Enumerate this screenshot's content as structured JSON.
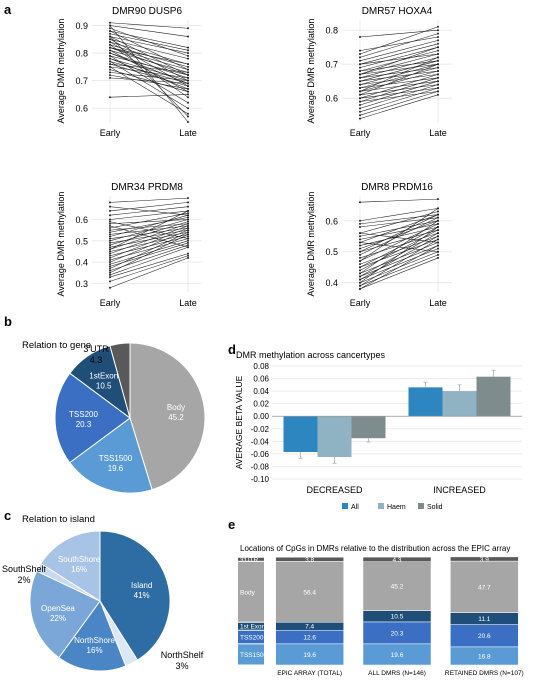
{
  "panel_labels": {
    "a": "a",
    "b": "b",
    "c": "c",
    "d": "d",
    "e": "e"
  },
  "colors": {
    "line": "#222222",
    "grid": "#e6e6e6",
    "body": "#a6a6a6",
    "tss1500": "#5b9bd5",
    "tss200": "#3a6fc4",
    "exon": "#1f4e79",
    "utr": "#595959",
    "island": "#2e6da4",
    "northshore": "#4a86c5",
    "opensea": "#7aa7d8",
    "southshore": "#a7c3e6",
    "southshelf": "#c9d9ef",
    "northshelf": "#dce7f5",
    "all": "#2e86c1",
    "haem": "#8fb3c3",
    "solid": "#7f8c8d"
  },
  "chart_data": [
    {
      "type": "line",
      "panel": "a",
      "title": "DMR90 DUSP6",
      "xlabel": "",
      "ylabel": "Average DMR methylation",
      "categories": [
        "Early",
        "Late"
      ],
      "ylim": [
        0.55,
        0.92
      ],
      "yticks": [
        0.6,
        0.7,
        0.8,
        0.9
      ],
      "ytick_labels": [
        "0.6",
        "0.7",
        "0.8",
        "0.9"
      ],
      "pairs": [
        [
          0.91,
          0.89
        ],
        [
          0.9,
          0.86
        ],
        [
          0.89,
          0.79
        ],
        [
          0.88,
          0.82
        ],
        [
          0.88,
          0.74
        ],
        [
          0.87,
          0.81
        ],
        [
          0.86,
          0.8
        ],
        [
          0.86,
          0.72
        ],
        [
          0.85,
          0.78
        ],
        [
          0.85,
          0.7
        ],
        [
          0.84,
          0.76
        ],
        [
          0.84,
          0.68
        ],
        [
          0.83,
          0.75
        ],
        [
          0.83,
          0.64
        ],
        [
          0.82,
          0.74
        ],
        [
          0.82,
          0.72
        ],
        [
          0.81,
          0.73
        ],
        [
          0.81,
          0.66
        ],
        [
          0.8,
          0.71
        ],
        [
          0.8,
          0.69
        ],
        [
          0.79,
          0.72
        ],
        [
          0.79,
          0.62
        ],
        [
          0.78,
          0.7
        ],
        [
          0.78,
          0.67
        ],
        [
          0.77,
          0.69
        ],
        [
          0.77,
          0.6
        ],
        [
          0.76,
          0.68
        ],
        [
          0.76,
          0.73
        ],
        [
          0.75,
          0.71
        ],
        [
          0.74,
          0.66
        ],
        [
          0.73,
          0.7
        ],
        [
          0.72,
          0.67
        ],
        [
          0.71,
          0.69
        ],
        [
          0.64,
          0.65
        ],
        [
          0.86,
          0.57
        ],
        [
          0.9,
          0.55
        ],
        [
          0.75,
          0.58
        ],
        [
          0.82,
          0.76
        ]
      ]
    },
    {
      "type": "line",
      "panel": "a",
      "title": "DMR57 HOXA4",
      "xlabel": "",
      "ylabel": "Average DMR methylation",
      "categories": [
        "Early",
        "Late"
      ],
      "ylim": [
        0.53,
        0.83
      ],
      "yticks": [
        0.6,
        0.7,
        0.8
      ],
      "ytick_labels": [
        "0.6",
        "0.7",
        "0.8"
      ],
      "pairs": [
        [
          0.78,
          0.8
        ],
        [
          0.73,
          0.81
        ],
        [
          0.72,
          0.79
        ],
        [
          0.71,
          0.77
        ],
        [
          0.7,
          0.76
        ],
        [
          0.69,
          0.75
        ],
        [
          0.68,
          0.74
        ],
        [
          0.68,
          0.71
        ],
        [
          0.67,
          0.73
        ],
        [
          0.67,
          0.7
        ],
        [
          0.66,
          0.72
        ],
        [
          0.66,
          0.69
        ],
        [
          0.65,
          0.71
        ],
        [
          0.65,
          0.68
        ],
        [
          0.64,
          0.7
        ],
        [
          0.64,
          0.67
        ],
        [
          0.63,
          0.69
        ],
        [
          0.63,
          0.66
        ],
        [
          0.62,
          0.68
        ],
        [
          0.62,
          0.65
        ],
        [
          0.61,
          0.7
        ],
        [
          0.61,
          0.64
        ],
        [
          0.6,
          0.67
        ],
        [
          0.6,
          0.63
        ],
        [
          0.59,
          0.66
        ],
        [
          0.59,
          0.62
        ],
        [
          0.58,
          0.65
        ],
        [
          0.57,
          0.64
        ],
        [
          0.56,
          0.63
        ],
        [
          0.55,
          0.62
        ],
        [
          0.54,
          0.61
        ],
        [
          0.74,
          0.78
        ],
        [
          0.7,
          0.73
        ],
        [
          0.67,
          0.75
        ],
        [
          0.62,
          0.72
        ]
      ]
    },
    {
      "type": "line",
      "panel": "a",
      "title": "DMR34 PRDM8",
      "xlabel": "",
      "ylabel": "Average DMR methylation",
      "categories": [
        "Early",
        "Late"
      ],
      "ylim": [
        0.26,
        0.71
      ],
      "yticks": [
        0.3,
        0.4,
        0.5,
        0.6
      ],
      "ytick_labels": [
        "0.3",
        "0.4",
        "0.5",
        "0.6"
      ],
      "pairs": [
        [
          0.68,
          0.7
        ],
        [
          0.66,
          0.62
        ],
        [
          0.64,
          0.68
        ],
        [
          0.62,
          0.66
        ],
        [
          0.6,
          0.64
        ],
        [
          0.58,
          0.6
        ],
        [
          0.56,
          0.63
        ],
        [
          0.55,
          0.58
        ],
        [
          0.54,
          0.61
        ],
        [
          0.53,
          0.57
        ],
        [
          0.52,
          0.62
        ],
        [
          0.51,
          0.56
        ],
        [
          0.5,
          0.6
        ],
        [
          0.49,
          0.55
        ],
        [
          0.48,
          0.59
        ],
        [
          0.47,
          0.54
        ],
        [
          0.46,
          0.58
        ],
        [
          0.45,
          0.53
        ],
        [
          0.44,
          0.57
        ],
        [
          0.43,
          0.52
        ],
        [
          0.42,
          0.56
        ],
        [
          0.41,
          0.51
        ],
        [
          0.4,
          0.55
        ],
        [
          0.39,
          0.5
        ],
        [
          0.38,
          0.49
        ],
        [
          0.37,
          0.54
        ],
        [
          0.36,
          0.48
        ],
        [
          0.35,
          0.53
        ],
        [
          0.34,
          0.47
        ],
        [
          0.33,
          0.44
        ],
        [
          0.31,
          0.43
        ],
        [
          0.28,
          0.42
        ],
        [
          0.59,
          0.51
        ],
        [
          0.57,
          0.47
        ],
        [
          0.46,
          0.64
        ]
      ]
    },
    {
      "type": "line",
      "panel": "a",
      "title": "DMR8 PRDM16",
      "xlabel": "",
      "ylabel": "Average DMR methylation",
      "categories": [
        "Early",
        "Late"
      ],
      "ylim": [
        0.37,
        0.68
      ],
      "yticks": [
        0.4,
        0.5,
        0.6
      ],
      "ytick_labels": [
        "0.4",
        "0.5",
        "0.6"
      ],
      "pairs": [
        [
          0.66,
          0.67
        ],
        [
          0.6,
          0.64
        ],
        [
          0.59,
          0.62
        ],
        [
          0.58,
          0.61
        ],
        [
          0.56,
          0.63
        ],
        [
          0.55,
          0.6
        ],
        [
          0.54,
          0.59
        ],
        [
          0.53,
          0.62
        ],
        [
          0.52,
          0.58
        ],
        [
          0.51,
          0.6
        ],
        [
          0.5,
          0.57
        ],
        [
          0.49,
          0.61
        ],
        [
          0.48,
          0.56
        ],
        [
          0.47,
          0.59
        ],
        [
          0.46,
          0.55
        ],
        [
          0.45,
          0.58
        ],
        [
          0.45,
          0.54
        ],
        [
          0.44,
          0.57
        ],
        [
          0.43,
          0.53
        ],
        [
          0.43,
          0.6
        ],
        [
          0.42,
          0.52
        ],
        [
          0.42,
          0.56
        ],
        [
          0.41,
          0.51
        ],
        [
          0.41,
          0.55
        ],
        [
          0.4,
          0.5
        ],
        [
          0.4,
          0.58
        ],
        [
          0.39,
          0.49
        ],
        [
          0.39,
          0.54
        ],
        [
          0.38,
          0.52
        ],
        [
          0.38,
          0.48
        ],
        [
          0.56,
          0.53
        ],
        [
          0.53,
          0.5
        ],
        [
          0.47,
          0.64
        ],
        [
          0.5,
          0.62
        ]
      ]
    },
    {
      "type": "pie",
      "panel": "b",
      "title": "Relation to gene",
      "labels": [
        "Body",
        "TSS1500",
        "TSS200",
        "1stExon",
        "3'UTR"
      ],
      "values": [
        45.2,
        19.6,
        20.3,
        10.5,
        4.3
      ],
      "value_labels": [
        "45.2",
        "19.6",
        "20.3",
        "10.5",
        "4.3"
      ]
    },
    {
      "type": "pie",
      "panel": "c",
      "title": "Relation to island",
      "labels": [
        "Island",
        "NorthShelf",
        "NorthShore",
        "OpenSea",
        "SouthShelf",
        "SouthShore"
      ],
      "values": [
        41,
        3,
        16,
        22,
        2,
        16
      ],
      "value_labels": [
        "41%",
        "3%",
        "16%",
        "22%",
        "2%",
        "16%"
      ]
    },
    {
      "type": "bar",
      "panel": "d",
      "title": "DMR methylation across cancertypes",
      "ylabel": "AVERAGE BETA VALUE",
      "categories": [
        "DECREASED",
        "INCREASED"
      ],
      "series": [
        {
          "name": "All",
          "values": [
            -0.057,
            0.046
          ]
        },
        {
          "name": "Haem",
          "values": [
            -0.065,
            0.04
          ]
        },
        {
          "name": "Solid",
          "values": [
            -0.035,
            0.063
          ]
        }
      ],
      "errors": [
        [
          0.01,
          0.01,
          0.006
        ],
        [
          0.008,
          0.01,
          0.01
        ]
      ],
      "ylim": [
        -0.1,
        0.08
      ],
      "yticks": [
        -0.1,
        -0.08,
        -0.06,
        -0.04,
        -0.02,
        0.0,
        0.02,
        0.04,
        0.06,
        0.08
      ],
      "ytick_labels": [
        "-0.10",
        "-0.08",
        "-0.06",
        "-0.04",
        "-0.02",
        "0.00",
        "0.02",
        "0.04",
        "0.06",
        "0.08"
      ],
      "legend": "bottom"
    },
    {
      "type": "bar",
      "panel": "e",
      "stacked": true,
      "title": "Locations of CpGs in DMRs relative to the distribution across the EPIC array",
      "categories": [
        "EPIC ARRAY (TOTAL)",
        "ALL DMRS (N=146)",
        "RETAINED DMRS (N=107)"
      ],
      "series": [
        {
          "name": "TSS1500",
          "values": [
            19.6,
            19.6,
            16.8
          ]
        },
        {
          "name": "TSS200",
          "values": [
            12.6,
            20.3,
            20.6
          ]
        },
        {
          "name": "1st Exon",
          "values": [
            7.4,
            10.5,
            11.1
          ]
        },
        {
          "name": "Body",
          "values": [
            56.4,
            45.2,
            47.7
          ]
        },
        {
          "name": "3'UTR",
          "values": [
            3.8,
            4.3,
            3.9
          ]
        }
      ],
      "value_labels": [
        [
          "19.6",
          "12.6",
          "7.4",
          "56.4",
          "3.8"
        ],
        [
          "19.6",
          "20.3",
          "10.5",
          "45.2",
          "4.3"
        ],
        [
          "16.8",
          "20.6",
          "11.1",
          "47.7",
          "3.9"
        ]
      ],
      "ylim": [
        0,
        100
      ],
      "legend": "left"
    }
  ]
}
